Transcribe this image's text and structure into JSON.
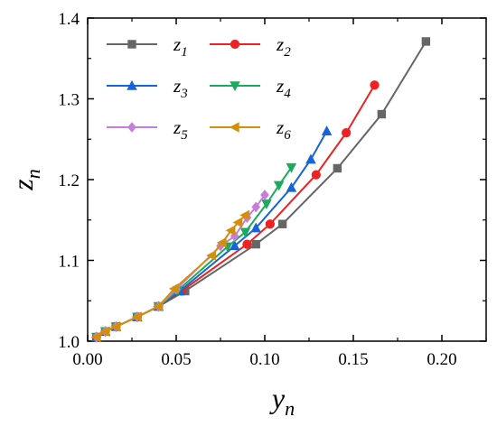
{
  "chart_data": {
    "type": "line",
    "xlabel": "y",
    "xlabel_sub": "n",
    "ylabel": "z",
    "ylabel_sub": "n",
    "xlim": [
      0.0,
      0.225
    ],
    "ylim": [
      1.0,
      1.4
    ],
    "xticks": [
      "0.00",
      "0.05",
      "0.10",
      "0.15",
      "0.20"
    ],
    "xtick_values": [
      0.0,
      0.05,
      0.1,
      0.15,
      0.2
    ],
    "yticks": [
      "1.0",
      "1.1",
      "1.2",
      "1.3",
      "1.4"
    ],
    "ytick_values": [
      1.0,
      1.1,
      1.2,
      1.3,
      1.4
    ],
    "grid": false,
    "legend_position": "top-left",
    "series": [
      {
        "name": "z",
        "sub": "1",
        "color": "#666666",
        "marker": "square",
        "x": [
          0.005,
          0.01,
          0.016,
          0.028,
          0.04,
          0.055,
          0.095,
          0.11,
          0.141,
          0.166,
          0.191
        ],
        "y": [
          1.005,
          1.012,
          1.018,
          1.03,
          1.043,
          1.062,
          1.12,
          1.145,
          1.214,
          1.281,
          1.371
        ]
      },
      {
        "name": "z",
        "sub": "2",
        "color": "#ee2222",
        "marker": "circle",
        "x": [
          0.005,
          0.01,
          0.016,
          0.028,
          0.04,
          0.053,
          0.09,
          0.103,
          0.129,
          0.146,
          0.162
        ],
        "y": [
          1.005,
          1.012,
          1.018,
          1.03,
          1.043,
          1.062,
          1.12,
          1.145,
          1.206,
          1.258,
          1.317
        ]
      },
      {
        "name": "z",
        "sub": "3",
        "color": "#1565d8",
        "marker": "triangle-up",
        "x": [
          0.005,
          0.01,
          0.016,
          0.028,
          0.04,
          0.052,
          0.083,
          0.095,
          0.115,
          0.126,
          0.135
        ],
        "y": [
          1.005,
          1.012,
          1.018,
          1.03,
          1.043,
          1.062,
          1.118,
          1.14,
          1.19,
          1.225,
          1.26
        ]
      },
      {
        "name": "z",
        "sub": "4",
        "color": "#1daa5e",
        "marker": "triangle-down",
        "x": [
          0.005,
          0.01,
          0.016,
          0.028,
          0.04,
          0.051,
          0.079,
          0.089,
          0.101,
          0.108,
          0.115
        ],
        "y": [
          1.005,
          1.012,
          1.018,
          1.03,
          1.043,
          1.063,
          1.117,
          1.135,
          1.17,
          1.193,
          1.215
        ]
      },
      {
        "name": "z",
        "sub": "5",
        "color": "#c77ddd",
        "marker": "diamond",
        "x": [
          0.005,
          0.01,
          0.016,
          0.028,
          0.04,
          0.05,
          0.075,
          0.083,
          0.09,
          0.095,
          0.1
        ],
        "y": [
          1.005,
          1.012,
          1.018,
          1.03,
          1.043,
          1.064,
          1.118,
          1.13,
          1.153,
          1.166,
          1.181
        ]
      },
      {
        "name": "z",
        "sub": "6",
        "color": "#d48f0a",
        "marker": "triangle-left",
        "x": [
          0.005,
          0.01,
          0.016,
          0.028,
          0.04,
          0.049,
          0.07,
          0.076,
          0.081,
          0.085,
          0.089
        ],
        "y": [
          1.005,
          1.012,
          1.018,
          1.03,
          1.043,
          1.065,
          1.106,
          1.122,
          1.137,
          1.147,
          1.156
        ]
      }
    ]
  }
}
